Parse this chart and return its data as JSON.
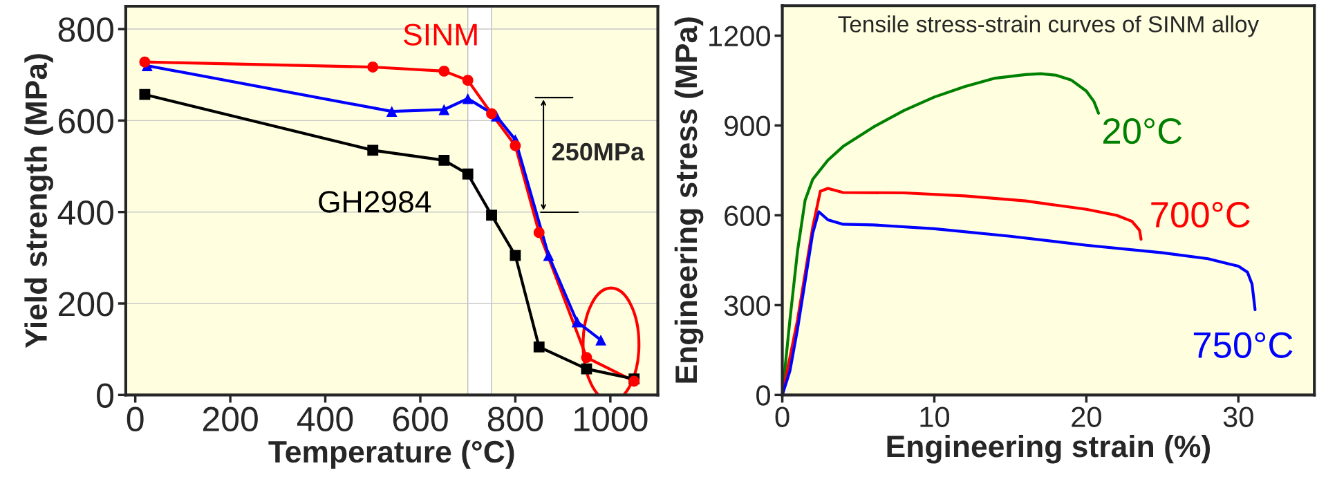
{
  "chart_data": [
    {
      "type": "line",
      "xlabel": "Temperature (°C)",
      "ylabel": "Yield strength (MPa)",
      "xlim": [
        -20,
        1100
      ],
      "ylim": [
        0,
        850
      ],
      "xticks": [
        0,
        200,
        400,
        600,
        800,
        1000
      ],
      "yticks": [
        0,
        200,
        400,
        600,
        800
      ],
      "grid": "y",
      "series": [
        {
          "name": "SINM",
          "color": "#ff0000",
          "marker": "circle",
          "x": [
            20,
            500,
            650,
            700,
            750,
            800,
            850,
            950,
            1050
          ],
          "values": [
            728,
            717,
            708,
            688,
            615,
            545,
            355,
            82,
            30
          ]
        },
        {
          "color": "#0000ff",
          "marker": "triangle",
          "x": [
            25,
            540,
            650,
            700,
            760,
            800,
            870,
            930,
            980
          ],
          "values": [
            720,
            620,
            624,
            648,
            610,
            558,
            305,
            160,
            120
          ]
        },
        {
          "name": "GH2984",
          "color": "#000000",
          "marker": "square",
          "x": [
            20,
            500,
            650,
            700,
            750,
            800,
            850,
            950,
            1050
          ],
          "values": [
            657,
            535,
            513,
            483,
            393,
            305,
            105,
            57,
            35
          ]
        }
      ],
      "bands": [
        {
          "axis": "x",
          "from": 700,
          "to": 750,
          "color": "#ffffff"
        }
      ],
      "annotations": [
        "250MPa"
      ]
    },
    {
      "type": "line",
      "title": "Tensile stress-strain curves of SINM alloy",
      "xlabel": "Engineering strain (%)",
      "ylabel": "Engineering stress (MPa)",
      "xlim": [
        0,
        35
      ],
      "ylim": [
        0,
        1300
      ],
      "xticks": [
        0,
        10,
        20,
        30
      ],
      "yticks": [
        0,
        300,
        600,
        900,
        1200
      ],
      "grid": false,
      "series": [
        {
          "name": "20°C",
          "color": "#008000",
          "x": [
            0,
            0.5,
            1,
            1.5,
            2,
            3,
            4,
            6,
            8,
            10,
            12,
            14,
            16,
            17,
            18,
            19,
            20,
            20.5,
            20.8
          ],
          "values": [
            0,
            250,
            480,
            650,
            720,
            784,
            830,
            895,
            950,
            995,
            1030,
            1058,
            1070,
            1073,
            1068,
            1052,
            1015,
            980,
            941
          ]
        },
        {
          "name": "700°C",
          "color": "#ff0000",
          "x": [
            0,
            1,
            2,
            2.5,
            3,
            4,
            8,
            12,
            16,
            20,
            22,
            23,
            23.5,
            23.6
          ],
          "values": [
            0,
            250,
            560,
            680,
            690,
            676,
            675,
            665,
            648,
            620,
            600,
            580,
            550,
            520
          ]
        },
        {
          "name": "750°C",
          "color": "#0000ff",
          "x": [
            0,
            0.5,
            1,
            2,
            2.4,
            3,
            4,
            6,
            10,
            15,
            20,
            25,
            28,
            30,
            30.6,
            30.9,
            31.1
          ],
          "values": [
            0,
            80,
            220,
            540,
            612,
            585,
            570,
            568,
            555,
            530,
            500,
            475,
            455,
            430,
            410,
            370,
            285
          ]
        }
      ]
    }
  ]
}
